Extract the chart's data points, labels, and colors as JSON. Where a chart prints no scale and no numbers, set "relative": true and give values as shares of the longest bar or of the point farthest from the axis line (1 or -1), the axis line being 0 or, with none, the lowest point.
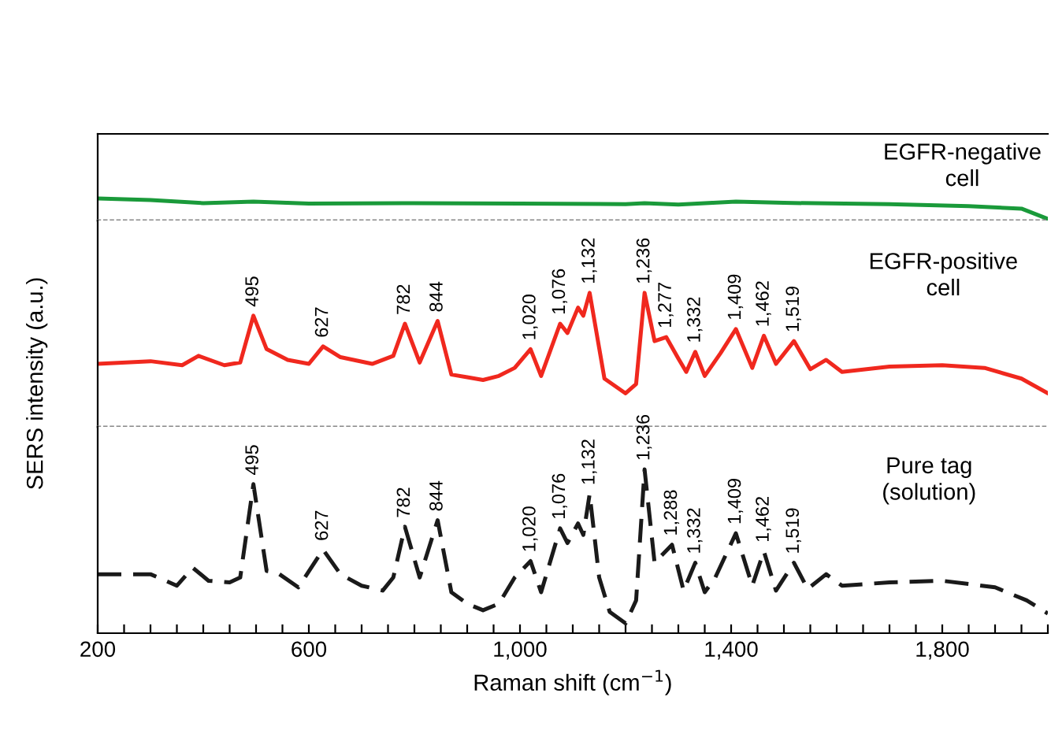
{
  "chart_data": [
    {
      "type": "line",
      "relative": true,
      "tick_labels": false,
      "line_style": "solid",
      "xlim": [
        200,
        2000
      ],
      "x": [
        200,
        300,
        400,
        495,
        600,
        800,
        1000,
        1200,
        1236,
        1300,
        1409,
        1500,
        1700,
        1850,
        1950,
        2000
      ],
      "series": [
        {
          "color": "#1a9a3a",
          "values": [
            1.0,
            0.93,
            0.79,
            0.86,
            0.77,
            0.79,
            0.77,
            0.74,
            0.79,
            0.72,
            0.86,
            0.8,
            0.74,
            0.65,
            0.54,
            0.07
          ]
        }
      ],
      "annotations": [
        "EGFR-negative\ncell"
      ]
    },
    {
      "type": "line",
      "relative": true,
      "tick_labels": false,
      "line_style": "solid",
      "ylabel": "SERS intensity (a.u.)",
      "xlim": [
        200,
        2000
      ],
      "x": [
        200,
        300,
        360,
        391,
        440,
        470,
        495,
        520,
        560,
        600,
        627,
        660,
        720,
        760,
        782,
        810,
        844,
        870,
        900,
        930,
        960,
        990,
        1020,
        1040,
        1076,
        1090,
        1110,
        1120,
        1132,
        1160,
        1200,
        1220,
        1236,
        1255,
        1277,
        1300,
        1315,
        1332,
        1350,
        1380,
        1409,
        1440,
        1462,
        1485,
        1519,
        1550,
        1580,
        1610,
        1700,
        1800,
        1880,
        1950,
        2000
      ],
      "series": [
        {
          "color": "#f0281e",
          "values": [
            0.47,
            0.49,
            0.46,
            0.53,
            0.46,
            0.48,
            0.83,
            0.58,
            0.5,
            0.47,
            0.6,
            0.52,
            0.47,
            0.53,
            0.77,
            0.48,
            0.79,
            0.39,
            0.37,
            0.35,
            0.38,
            0.44,
            0.58,
            0.38,
            0.77,
            0.7,
            0.89,
            0.83,
            1.0,
            0.36,
            0.25,
            0.32,
            1.0,
            0.64,
            0.67,
            0.51,
            0.41,
            0.56,
            0.38,
            0.55,
            0.73,
            0.44,
            0.68,
            0.47,
            0.64,
            0.43,
            0.5,
            0.41,
            0.45,
            0.46,
            0.44,
            0.36,
            0.25
          ]
        }
      ],
      "annotations": [
        "EGFR-positive\ncell",
        {
          "text": "495",
          "x": 495,
          "y": 0.83
        },
        {
          "text": "627",
          "x": 627,
          "y": 0.6
        },
        {
          "text": "782",
          "x": 782,
          "y": 0.77
        },
        {
          "text": "844",
          "x": 844,
          "y": 0.79
        },
        {
          "text": "1,020",
          "x": 1020,
          "y": 0.58
        },
        {
          "text": "1,076",
          "x": 1076,
          "y": 0.77
        },
        {
          "text": "1,132",
          "x": 1132,
          "y": 1.0
        },
        {
          "text": "1,236",
          "x": 1236,
          "y": 1.0
        },
        {
          "text": "1,277",
          "x": 1277,
          "y": 0.67
        },
        {
          "text": "1,332",
          "x": 1332,
          "y": 0.56
        },
        {
          "text": "1,409",
          "x": 1409,
          "y": 0.73
        },
        {
          "text": "1,462",
          "x": 1462,
          "y": 0.68
        },
        {
          "text": "1,519",
          "x": 1519,
          "y": 0.64
        }
      ]
    },
    {
      "type": "line",
      "relative": true,
      "tick_labels": "x",
      "line_style": "dashed",
      "xlabel": "Raman shift (cm$^{−1}$)",
      "xlim": [
        200,
        2000
      ],
      "xticks": [
        200,
        {
          "value": 250,
          "label": null
        },
        {
          "value": 300,
          "label": null
        },
        {
          "value": 350,
          "label": null
        },
        {
          "value": 400,
          "label": null
        },
        {
          "value": 450,
          "label": null
        },
        {
          "value": 500,
          "label": null
        },
        {
          "value": 550,
          "label": null
        },
        600,
        {
          "value": 650,
          "label": null
        },
        {
          "value": 700,
          "label": null
        },
        {
          "value": 750,
          "label": null
        },
        {
          "value": 800,
          "label": null
        },
        {
          "value": 850,
          "label": null
        },
        {
          "value": 900,
          "label": null
        },
        {
          "value": 950,
          "label": null
        },
        {
          "value": 1000,
          "label": "1,000"
        },
        {
          "value": 1050,
          "label": null
        },
        {
          "value": 1100,
          "label": null
        },
        {
          "value": 1150,
          "label": null
        },
        {
          "value": 1200,
          "label": null
        },
        {
          "value": 1250,
          "label": null
        },
        {
          "value": 1300,
          "label": null
        },
        {
          "value": 1350,
          "label": null
        },
        {
          "value": 1400,
          "label": "1,400"
        },
        {
          "value": 1450,
          "label": null
        },
        {
          "value": 1500,
          "label": null
        },
        {
          "value": 1550,
          "label": null
        },
        {
          "value": 1600,
          "label": null
        },
        {
          "value": 1650,
          "label": null
        },
        {
          "value": 1700,
          "label": null
        },
        {
          "value": 1750,
          "label": null
        },
        {
          "value": 1800,
          "label": "1,800"
        },
        {
          "value": 1850,
          "label": null
        },
        {
          "value": 1900,
          "label": null
        },
        {
          "value": 1950,
          "label": null
        },
        {
          "value": 2000,
          "label": null
        }
      ],
      "x": [
        200,
        300,
        350,
        380,
        410,
        450,
        470,
        495,
        520,
        540,
        580,
        627,
        660,
        700,
        740,
        760,
        782,
        810,
        844,
        870,
        900,
        930,
        960,
        990,
        1020,
        1040,
        1076,
        1090,
        1110,
        1120,
        1132,
        1150,
        1170,
        1200,
        1220,
        1236,
        1255,
        1288,
        1310,
        1332,
        1350,
        1370,
        1409,
        1440,
        1462,
        1485,
        1519,
        1545,
        1580,
        1610,
        1700,
        1800,
        1900,
        1960,
        2000
      ],
      "series": [
        {
          "color": "#1a1a1a",
          "values": [
            0.36,
            0.36,
            0.29,
            0.4,
            0.32,
            0.31,
            0.34,
            0.91,
            0.38,
            0.37,
            0.28,
            0.51,
            0.36,
            0.29,
            0.26,
            0.34,
            0.65,
            0.34,
            0.69,
            0.25,
            0.18,
            0.14,
            0.18,
            0.34,
            0.44,
            0.25,
            0.64,
            0.55,
            0.67,
            0.6,
            0.85,
            0.34,
            0.13,
            0.06,
            0.2,
            1.0,
            0.43,
            0.54,
            0.26,
            0.43,
            0.25,
            0.34,
            0.61,
            0.29,
            0.5,
            0.26,
            0.43,
            0.27,
            0.36,
            0.29,
            0.31,
            0.32,
            0.28,
            0.2,
            0.12
          ]
        }
      ],
      "annotations": [
        "Pure tag\n(solution)",
        {
          "text": "495",
          "x": 495,
          "y": 0.91
        },
        {
          "text": "627",
          "x": 627,
          "y": 0.51
        },
        {
          "text": "782",
          "x": 782,
          "y": 0.65
        },
        {
          "text": "844",
          "x": 844,
          "y": 0.69
        },
        {
          "text": "1,020",
          "x": 1020,
          "y": 0.44
        },
        {
          "text": "1,076",
          "x": 1076,
          "y": 0.64
        },
        {
          "text": "1,132",
          "x": 1132,
          "y": 0.85
        },
        {
          "text": "1,236",
          "x": 1236,
          "y": 1.0
        },
        {
          "text": "1,288",
          "x": 1288,
          "y": 0.54
        },
        {
          "text": "1,332",
          "x": 1332,
          "y": 0.43
        },
        {
          "text": "1,409",
          "x": 1409,
          "y": 0.61
        },
        {
          "text": "1,462",
          "x": 1462,
          "y": 0.5
        },
        {
          "text": "1,519",
          "x": 1519,
          "y": 0.43
        }
      ]
    }
  ]
}
